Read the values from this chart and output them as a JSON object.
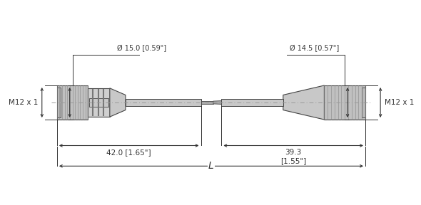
{
  "bg_color": "#ffffff",
  "line_color": "#444444",
  "dim_color": "#333333",
  "left_connector": {
    "label": "M12 x 1",
    "diam_label": "Ø 15.0 [0.59\"]",
    "length_label": "42.0 [1.65\"]"
  },
  "right_connector": {
    "label": "M12 x 1",
    "diam_label": "Ø 14.5 [0.57\"]",
    "length_label": "39.3\n[1.55\"]"
  },
  "length_label": "L",
  "figsize": [
    5.9,
    2.88
  ],
  "dpi": 100
}
